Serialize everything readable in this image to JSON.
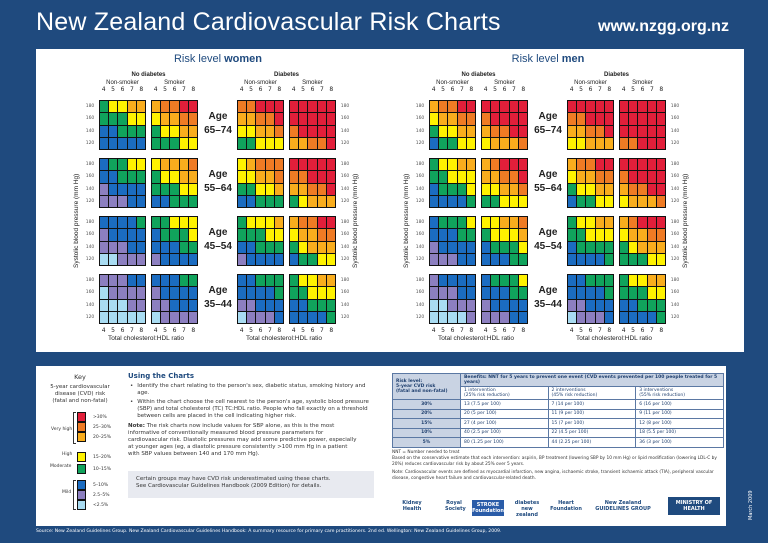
{
  "header": {
    "title": "New Zealand Cardiovascular Risk Charts",
    "url": "www.nzgg.org.nz"
  },
  "colors": {
    "r": "#e21f3a",
    "o": "#ef7b24",
    "a": "#f9ad1d",
    "y": "#fff200",
    "g": "#10a35c",
    "b": "#1b6cc1",
    "p": "#8c7fc0",
    "l": "#a9dcf2",
    "background": "#1f4a7e"
  },
  "charts": {
    "women": {
      "title_prefix": "Risk level ",
      "title_sex": "women",
      "ages": [
        {
          "label": "Age",
          "range": "65–74",
          "grids": [
            [
              "gyyaa",
              "gggyy",
              "bbggg",
              "bbbbb"
            ],
            [
              "aoorr",
              "yaaoo",
              "gyyaa",
              "gggyy"
            ],
            [
              "oorrr",
              "aaoor",
              "yyaao",
              "ggyyy"
            ],
            [
              "rrrrr",
              "rrrrr",
              "orrrr",
              "aaoor"
            ]
          ]
        },
        {
          "label": "Age",
          "range": "55–64",
          "grids": [
            [
              "bggyy",
              "bbggg",
              "pbbbb",
              "pppbb"
            ],
            [
              "yaaao",
              "gyyaa",
              "gggyy",
              "bbggg"
            ],
            [
              "yaooo",
              "yyaao",
              "ggyya",
              "bbggg"
            ],
            [
              "rrrrr",
              "oorrr",
              "aaoor",
              "gyaaa"
            ]
          ]
        },
        {
          "label": "Age",
          "range": "45–54",
          "grids": [
            [
              "bbbbg",
              "pbbbb",
              "pppbb",
              "llppp"
            ],
            [
              "ggyyy",
              "bgggy",
              "bbbgg",
              "pbbbb"
            ],
            [
              "gyyya",
              "gggyy",
              "bbggg",
              "pbbbb"
            ],
            [
              "aoorr",
              "yaaoo",
              "gyaaa",
              "bggyy"
            ]
          ]
        },
        {
          "label": "Age",
          "range": "35–44",
          "grids": [
            [
              "pppbb",
              "lpppp",
              "lllpp",
              "lllll"
            ],
            [
              "bbbgg",
              "pbbbb",
              "ppbbb",
              "lpppp"
            ],
            [
              "bbggg",
              "bbbbg",
              "ppbbb",
              "lpppb"
            ],
            [
              "gyyaa",
              "ggyyy",
              "bbggg",
              "bbbbg"
            ]
          ]
        }
      ]
    },
    "men": {
      "title_prefix": "Risk level ",
      "title_sex": "men",
      "ages": [
        {
          "label": "Age",
          "range": "65–74",
          "grids": [
            [
              "aoorr",
              "yaaoo",
              "gyyaa",
              "bggyy"
            ],
            [
              "rrrrr",
              "orrrr",
              "aoorr",
              "yaaao"
            ],
            [
              "rrrrr",
              "oorrr",
              "aaoor",
              "yyaaa"
            ],
            [
              "rrrrr",
              "rrrrr",
              "rrrrr",
              "oorrr"
            ]
          ]
        },
        {
          "label": "Age",
          "range": "55–64",
          "grids": [
            [
              "gyyaa",
              "ggyyy",
              "bgggy",
              "bbbbg"
            ],
            [
              "aorrr",
              "aaoor",
              "yyaao",
              "ggyyy"
            ],
            [
              "aoorr",
              "yaaoo",
              "gyyaa",
              "bggyy"
            ],
            [
              "rrrrr",
              "orrrr",
              "aoorr",
              "yaaao"
            ]
          ]
        },
        {
          "label": "Age",
          "range": "45–54",
          "grids": [
            [
              "bgggy",
              "bbbgg",
              "pbbbb",
              "pppbb"
            ],
            [
              "yyaao",
              "gyyya",
              "bgggy",
              "bbbgg"
            ],
            [
              "gyyaa",
              "ggyyy",
              "bgggg",
              "bbbbg"
            ],
            [
              "aorrr",
              "yaaoo",
              "gyaaa",
              "gggyy"
            ]
          ]
        },
        {
          "label": "Age",
          "range": "35–44",
          "grids": [
            [
              "pbbbb",
              "pppbb",
              "llppp",
              "llllp"
            ],
            [
              "bgggy",
              "bbbgg",
              "pbbbb",
              "pppbb"
            ],
            [
              "bbggg",
              "bbbbg",
              "ppbbb",
              "lpppb"
            ],
            [
              "gyyaa",
              "gggyy",
              "bbggg",
              "bbbbg"
            ]
          ]
        }
      ]
    },
    "no_diabetes": "No diabetes",
    "diabetes": "Diabetes",
    "non_smoker": "Non-smoker",
    "smoker": "Smoker",
    "ratios": [
      "4",
      "5",
      "6",
      "7",
      "8"
    ],
    "sbp": [
      "180",
      "160",
      "140",
      "120"
    ],
    "ylabel": "Systolic blood pressure (mm Hg)",
    "xlabel": "Total cholesterol:HDL ratio"
  },
  "key": {
    "title": "Key",
    "desc": [
      "5-year cardiovascular",
      "disease (CVD) risk",
      "(fatal and non-fatal)"
    ],
    "levels": [
      {
        "code": "r",
        "label": ">30%"
      },
      {
        "code": "o",
        "label": "25–30%"
      },
      {
        "code": "a",
        "label": "20–25%"
      },
      {
        "code": "y",
        "label": "15–20%"
      },
      {
        "code": "g",
        "label": "10–15%"
      },
      {
        "code": "b",
        "label": "5–10%"
      },
      {
        "code": "p",
        "label": "2.5–5%"
      },
      {
        "code": "l",
        "label": "<2.5%"
      }
    ],
    "groups": {
      "very_high": "Very high",
      "high": "High",
      "moderate": "Moderate",
      "mild": "Mild"
    }
  },
  "using": {
    "title": "Using the Charts",
    "bullets": [
      "Identify the chart relating to the person's sex, diabetic status, smoking history and age.",
      "Within the chart choose the cell nearest to the person's age, systolic blood pressure (SBP) and total cholesterol (TC) TC:HDL ratio. People who fall exactly on a threshold between cells are placed in the cell indicating higher risk."
    ],
    "note_label": "Note:",
    "note": " The risk charts now include values for SBP alone, as this is the most informative of conventionally measured blood pressure parameters for cardiovascular risk. Diastolic pressures may add some predictive power, especially at younger ages (eg, a diastolic pressure consistently >100 mm Hg in a patient with SBP values between 140 and 170 mm Hg).",
    "callout": [
      "Certain groups may have CVD risk underestimated using these charts.",
      "See Cardiovascular Guidelines Handbook (2009 Edition) for details."
    ]
  },
  "table": {
    "risk_header": [
      "Risk level:",
      "5-year CVD risk",
      "(fatal and non-fatal)"
    ],
    "benefit_header": "Benefits: NNT for 5 years to prevent one event (CVD events prevented per 100 people treated for 5 years)",
    "columns": [
      [
        "1 intervention",
        "(25% risk reduction)"
      ],
      [
        "2 interventions",
        "(45% risk reduction)"
      ],
      [
        "3 interventions",
        "(55% risk reduction)"
      ]
    ],
    "rows": [
      [
        "30%",
        "13  (7.5 per 100)",
        "7  (14 per 100)",
        "6  (16 per 100)"
      ],
      [
        "20%",
        "20  (5 per 100)",
        "11  (9 per 100)",
        "9  (11 per 100)"
      ],
      [
        "15%",
        "27  (4 per 100)",
        "15  (7 per 100)",
        "12  (8 per 100)"
      ],
      [
        "10%",
        "40  (2.5 per 100)",
        "22  (4.5 per 100)",
        "18  (5.5 per 100)"
      ],
      [
        "5%",
        "80  (1.25 per 100)",
        "44  (2.25 per 100)",
        "36  (3 per 100)"
      ]
    ]
  },
  "notes": [
    "NNT = Number needed to treat",
    "Based on the conservative estimate that each intervention: aspirin, BP treatment (lowering SBP by 10 mm Hg) or lipid modification (lowering LDL-C by 20%) reduces cardiovascular risk by about 25% over 5 years.",
    "Note: Cardiovascular events are defined as myocardial infarction, new angina, ischaemic stroke, transient ischaemic attack (TIA), peripheral vascular disease, congestive heart failure and cardiovascular-related death."
  ],
  "logos": [
    "Kidney Health",
    "Royal Society",
    "STROKE Foundation",
    "diabetes new zealand",
    "Heart Foundation",
    "New Zealand GUIDELINES GROUP",
    "MINISTRY OF HEALTH"
  ],
  "date": "March 2009",
  "source": "Source: New Zealand Guidelines Group. New Zealand Cardiovascular Guidelines Handbook: A summary resource for primary care practitioners. 2nd ed. Wellington: New Zealand Guidelines Group, 2009."
}
